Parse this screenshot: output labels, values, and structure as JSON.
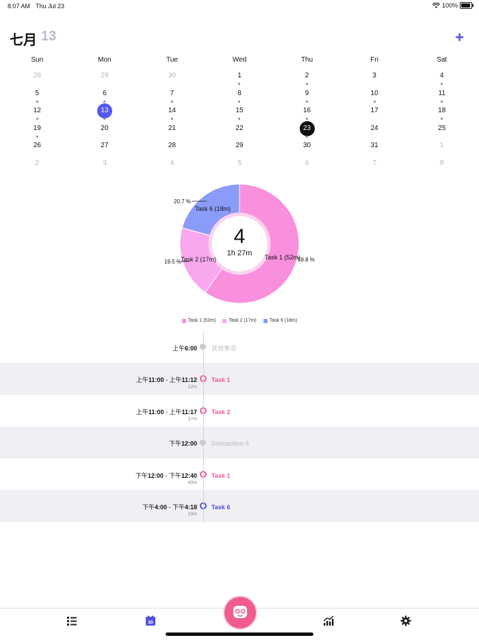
{
  "status": {
    "time": "8:07 AM",
    "date": "Thu Jul 23",
    "battery": "100%",
    "battery_level": 1.0
  },
  "header": {
    "month": "七月",
    "day": "13",
    "add_label": "+"
  },
  "calendar": {
    "weekdays": [
      "Sun",
      "Mon",
      "Tue",
      "Wed",
      "Thu",
      "Fri",
      "Sat"
    ],
    "days": [
      {
        "n": "28",
        "other": true,
        "dot": false
      },
      {
        "n": "29",
        "other": true,
        "dot": false
      },
      {
        "n": "30",
        "other": true,
        "dot": false
      },
      {
        "n": "1",
        "other": false,
        "dot": true
      },
      {
        "n": "2",
        "other": false,
        "dot": true
      },
      {
        "n": "3",
        "other": false,
        "dot": false
      },
      {
        "n": "4",
        "other": false,
        "dot": true
      },
      {
        "n": "5",
        "other": false,
        "dot": true
      },
      {
        "n": "6",
        "other": false,
        "dot": true
      },
      {
        "n": "7",
        "other": false,
        "dot": true
      },
      {
        "n": "8",
        "other": false,
        "dot": true
      },
      {
        "n": "9",
        "other": false,
        "dot": true
      },
      {
        "n": "10",
        "other": false,
        "dot": true
      },
      {
        "n": "11",
        "other": false,
        "dot": true
      },
      {
        "n": "12",
        "other": false,
        "dot": true
      },
      {
        "n": "13",
        "other": false,
        "dot": true,
        "selected": true
      },
      {
        "n": "14",
        "other": false,
        "dot": true
      },
      {
        "n": "15",
        "other": false,
        "dot": true
      },
      {
        "n": "16",
        "other": false,
        "dot": true
      },
      {
        "n": "17",
        "other": false,
        "dot": false
      },
      {
        "n": "18",
        "other": false,
        "dot": true
      },
      {
        "n": "19",
        "other": false,
        "dot": true
      },
      {
        "n": "20",
        "other": false,
        "dot": false
      },
      {
        "n": "21",
        "other": false,
        "dot": false
      },
      {
        "n": "22",
        "other": false,
        "dot": false
      },
      {
        "n": "23",
        "other": false,
        "dot": true,
        "today": true
      },
      {
        "n": "24",
        "other": false,
        "dot": false
      },
      {
        "n": "25",
        "other": false,
        "dot": false
      },
      {
        "n": "26",
        "other": false,
        "dot": false
      },
      {
        "n": "27",
        "other": false,
        "dot": false
      },
      {
        "n": "28",
        "other": false,
        "dot": false
      },
      {
        "n": "29",
        "other": false,
        "dot": false
      },
      {
        "n": "30",
        "other": false,
        "dot": false
      },
      {
        "n": "31",
        "other": false,
        "dot": false
      },
      {
        "n": "1",
        "other": true,
        "dot": false
      },
      {
        "n": "2",
        "other": true,
        "dot": false
      },
      {
        "n": "3",
        "other": true,
        "dot": false
      },
      {
        "n": "4",
        "other": true,
        "dot": false
      },
      {
        "n": "5",
        "other": true,
        "dot": false
      },
      {
        "n": "6",
        "other": true,
        "dot": false
      },
      {
        "n": "7",
        "other": true,
        "dot": false
      },
      {
        "n": "8",
        "other": true,
        "dot": false
      }
    ]
  },
  "chart_data": {
    "type": "pie",
    "center_value": "4",
    "center_label": "1h 27m",
    "slices": [
      {
        "label": "Task 1 (52m)",
        "percent_label": "59.8 %",
        "value": 52,
        "color": "#f990de"
      },
      {
        "label": "Task 2 (17m)",
        "percent_label": "19.5 %",
        "value": 17,
        "color": "#f9a8ef"
      },
      {
        "label": "Task 6 (18m)",
        "percent_label": "20.7 %",
        "value": 18,
        "color": "#8b9bf8"
      }
    ]
  },
  "timeline": {
    "rows": [
      {
        "time_pre": "上午",
        "time": "6:00",
        "range": null,
        "duration": "",
        "label": "其他事项",
        "color": "#c8c8ce",
        "type": "top"
      },
      {
        "time_pre": "上午",
        "time": "11:00",
        "range_pre": "上午",
        "range": "11:12",
        "duration": "12m",
        "label": "Task 1",
        "color": "#f0579b",
        "type": "ring"
      },
      {
        "time_pre": "上午",
        "time": "11:00",
        "range_pre": "上午",
        "range": "11:17",
        "duration": "17m",
        "label": "Task 2",
        "color": "#f0579b",
        "type": "ring"
      },
      {
        "time_pre": "下午",
        "time": "12:00",
        "range": null,
        "duration": "",
        "label": "Distraction 0",
        "color": "#c8c8ce",
        "type": "solid"
      },
      {
        "time_pre": "下午",
        "time": "12:00",
        "range_pre": "下午",
        "range": "12:40",
        "duration": "40m",
        "label": "Task 1",
        "color": "#f0579b",
        "type": "ring"
      },
      {
        "time_pre": "下午",
        "time": "4:00",
        "range_pre": "下午",
        "range": "4:18",
        "duration": "18m",
        "label": "Task 6",
        "color": "#4b4fdf",
        "type": "ring"
      }
    ]
  },
  "tabbar": {
    "items": [
      "list-icon",
      "calendar-30-icon",
      "stats-icon",
      "settings-icon"
    ],
    "calendar_badge": "30",
    "fab": "pomodoro-face-icon"
  },
  "colors": {
    "accent": "#4b4fdf",
    "pink": "#f15b8f"
  }
}
